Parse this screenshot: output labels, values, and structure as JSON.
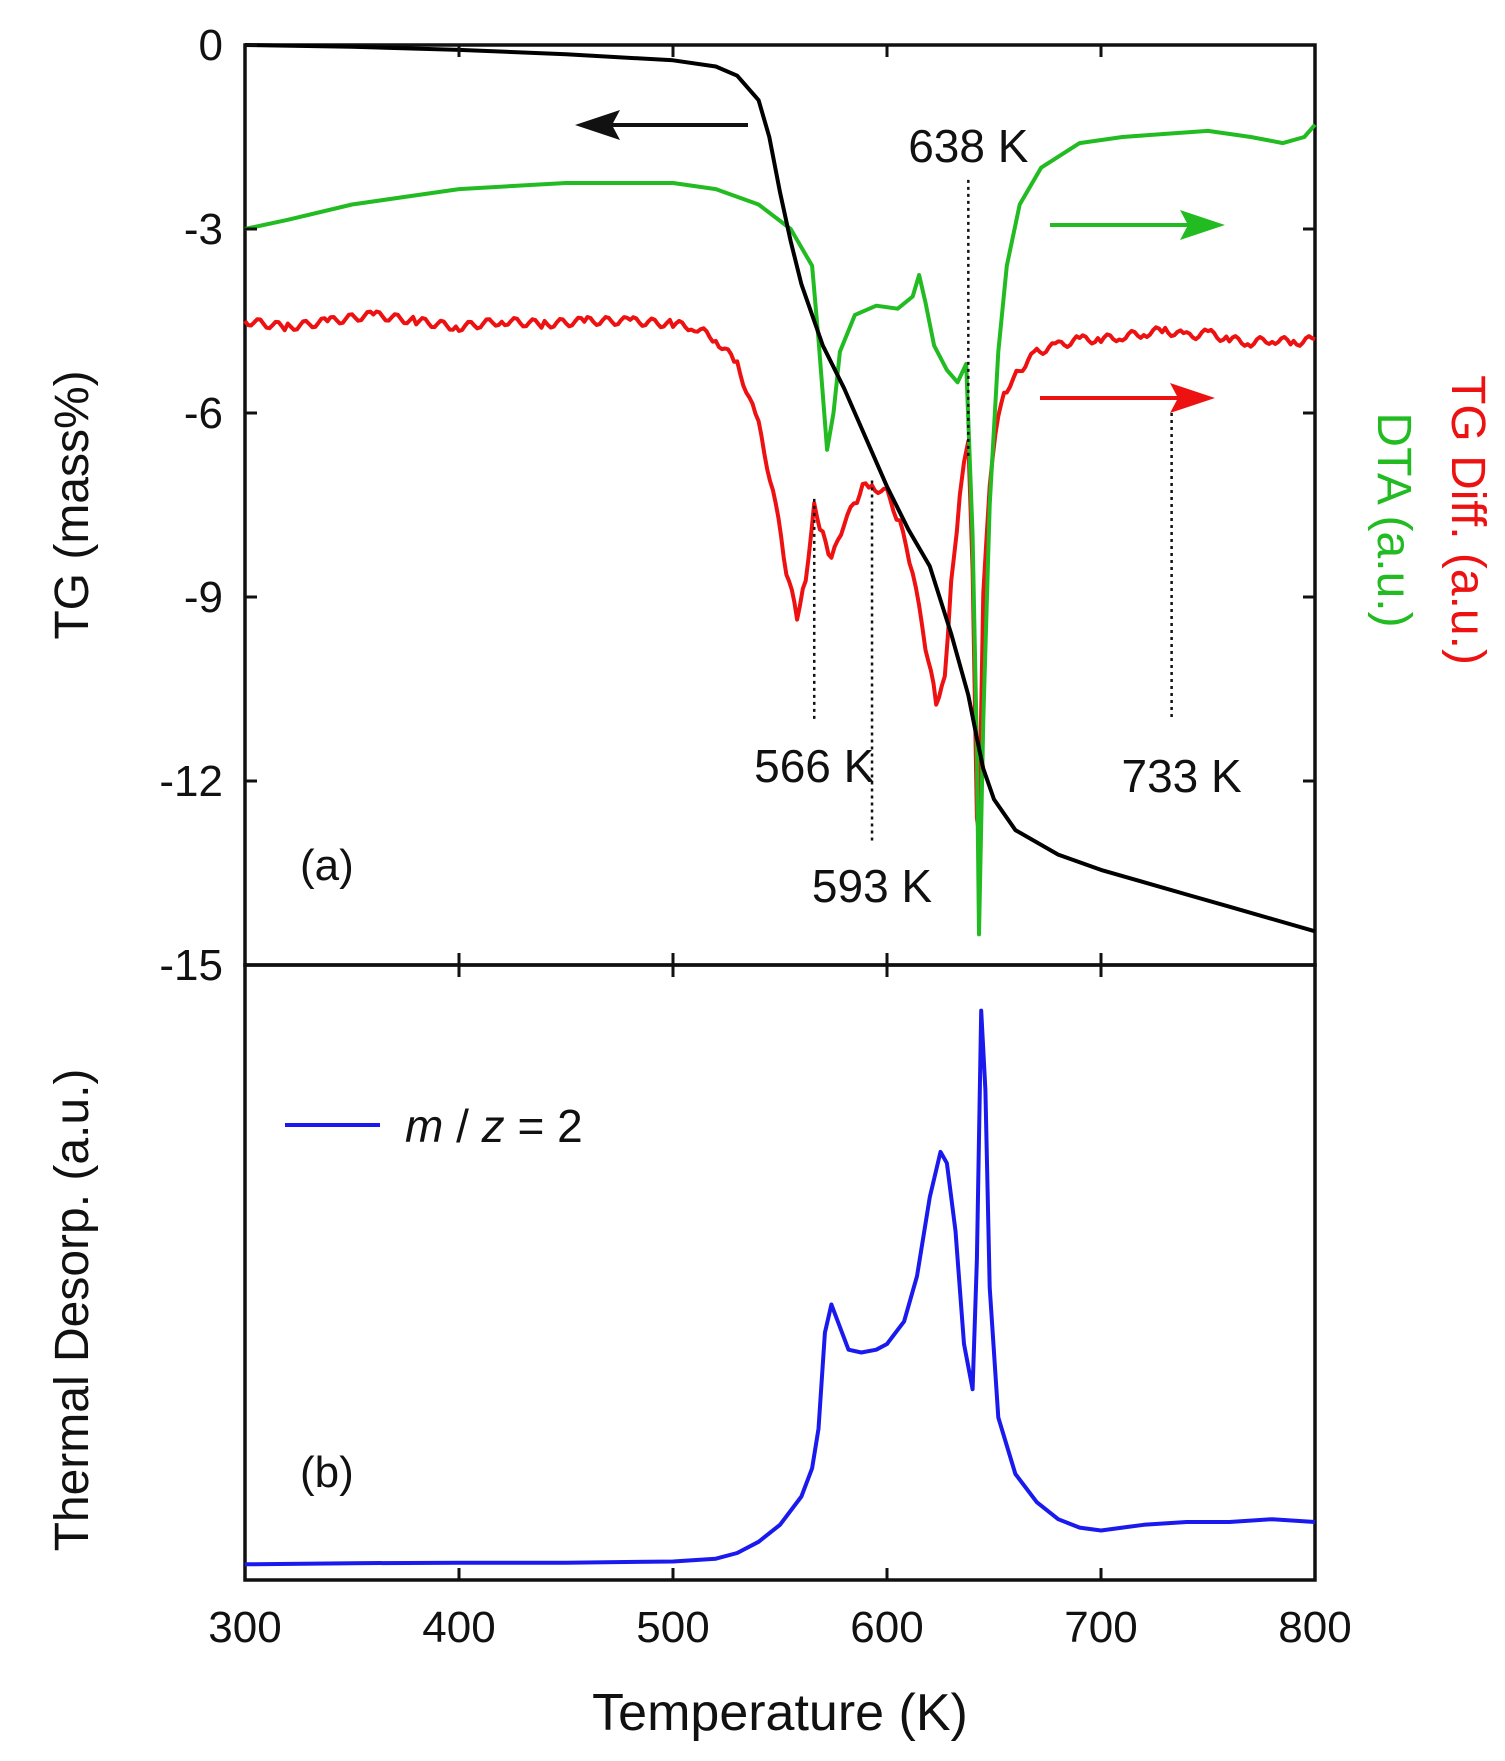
{
  "chart_data": [
    {
      "panel_label": "(a)",
      "type": "line",
      "xlim": [
        300,
        800
      ],
      "ylim": [
        -15,
        0
      ],
      "xticks": [
        300,
        400,
        500,
        600,
        700,
        800
      ],
      "yticks": [
        "0",
        "-3",
        "-6",
        "-9",
        "-12",
        "-15"
      ],
      "ylabel": "TG (mass%)",
      "ylabel_right_1": "TG Diff. (a.u.)",
      "ylabel_right_2": "DTA (a.u.)",
      "colors": {
        "tg": "#000000",
        "dta": "#22bb22",
        "tgdiff": "#ee1111"
      },
      "series": [
        {
          "name": "TG",
          "axis": "left",
          "points": [
            [
              300,
              0
            ],
            [
              350,
              -0.03
            ],
            [
              400,
              -0.08
            ],
            [
              450,
              -0.15
            ],
            [
              500,
              -0.25
            ],
            [
              520,
              -0.35
            ],
            [
              530,
              -0.5
            ],
            [
              540,
              -0.9
            ],
            [
              545,
              -1.5
            ],
            [
              550,
              -2.4
            ],
            [
              555,
              -3.2
            ],
            [
              560,
              -3.9
            ],
            [
              565,
              -4.4
            ],
            [
              570,
              -4.9
            ],
            [
              580,
              -5.6
            ],
            [
              590,
              -6.4
            ],
            [
              600,
              -7.2
            ],
            [
              610,
              -7.9
            ],
            [
              620,
              -8.5
            ],
            [
              630,
              -9.6
            ],
            [
              638,
              -10.6
            ],
            [
              642,
              -11.3
            ],
            [
              645,
              -11.8
            ],
            [
              650,
              -12.3
            ],
            [
              660,
              -12.8
            ],
            [
              680,
              -13.2
            ],
            [
              700,
              -13.45
            ],
            [
              720,
              -13.65
            ],
            [
              740,
              -13.85
            ],
            [
              760,
              -14.05
            ],
            [
              780,
              -14.25
            ],
            [
              800,
              -14.45
            ]
          ]
        },
        {
          "name": "DTA",
          "axis": "right",
          "points": [
            [
              300,
              -3.0
            ],
            [
              320,
              -2.85
            ],
            [
              350,
              -2.6
            ],
            [
              400,
              -2.35
            ],
            [
              450,
              -2.25
            ],
            [
              500,
              -2.25
            ],
            [
              520,
              -2.35
            ],
            [
              540,
              -2.6
            ],
            [
              555,
              -3.0
            ],
            [
              565,
              -3.6
            ],
            [
              568,
              -4.8
            ],
            [
              572,
              -6.6
            ],
            [
              575,
              -6.0
            ],
            [
              578,
              -5.0
            ],
            [
              585,
              -4.4
            ],
            [
              595,
              -4.25
            ],
            [
              605,
              -4.3
            ],
            [
              612,
              -4.1
            ],
            [
              615,
              -3.75
            ],
            [
              618,
              -4.2
            ],
            [
              622,
              -4.9
            ],
            [
              628,
              -5.3
            ],
            [
              633,
              -5.5
            ],
            [
              637,
              -5.2
            ],
            [
              640,
              -8.0
            ],
            [
              642,
              -11.5
            ],
            [
              643,
              -14.5
            ],
            [
              645,
              -11.0
            ],
            [
              648,
              -7.5
            ],
            [
              652,
              -5.0
            ],
            [
              656,
              -3.6
            ],
            [
              662,
              -2.6
            ],
            [
              672,
              -2.0
            ],
            [
              690,
              -1.6
            ],
            [
              710,
              -1.5
            ],
            [
              730,
              -1.45
            ],
            [
              750,
              -1.4
            ],
            [
              770,
              -1.5
            ],
            [
              785,
              -1.6
            ],
            [
              795,
              -1.5
            ],
            [
              800,
              -1.3
            ]
          ]
        },
        {
          "name": "TG Diff.",
          "axis": "right",
          "points": [
            [
              300,
              -4.5
            ],
            [
              320,
              -4.6
            ],
            [
              340,
              -4.5
            ],
            [
              360,
              -4.4
            ],
            [
              380,
              -4.5
            ],
            [
              400,
              -4.6
            ],
            [
              420,
              -4.5
            ],
            [
              440,
              -4.55
            ],
            [
              460,
              -4.5
            ],
            [
              480,
              -4.5
            ],
            [
              500,
              -4.55
            ],
            [
              510,
              -4.6
            ],
            [
              520,
              -4.8
            ],
            [
              530,
              -5.2
            ],
            [
              540,
              -6.2
            ],
            [
              548,
              -7.5
            ],
            [
              553,
              -8.6
            ],
            [
              558,
              -9.3
            ],
            [
              562,
              -8.7
            ],
            [
              566,
              -7.5
            ],
            [
              570,
              -8.0
            ],
            [
              574,
              -8.4
            ],
            [
              580,
              -7.8
            ],
            [
              586,
              -7.4
            ],
            [
              590,
              -7.1
            ],
            [
              593,
              -7.2
            ],
            [
              600,
              -7.3
            ],
            [
              606,
              -7.8
            ],
            [
              612,
              -8.6
            ],
            [
              618,
              -9.8
            ],
            [
              623,
              -10.7
            ],
            [
              627,
              -10.3
            ],
            [
              630,
              -8.8
            ],
            [
              634,
              -7.4
            ],
            [
              636,
              -6.8
            ],
            [
              638,
              -6.4
            ],
            [
              640,
              -8.5
            ],
            [
              642,
              -12.6
            ],
            [
              643,
              -12.9
            ],
            [
              645,
              -9.0
            ],
            [
              648,
              -7.2
            ],
            [
              652,
              -6.0
            ],
            [
              656,
              -5.6
            ],
            [
              662,
              -5.3
            ],
            [
              670,
              -5.0
            ],
            [
              680,
              -4.9
            ],
            [
              690,
              -4.8
            ],
            [
              700,
              -4.8
            ],
            [
              710,
              -4.75
            ],
            [
              720,
              -4.7
            ],
            [
              730,
              -4.65
            ],
            [
              740,
              -4.75
            ],
            [
              750,
              -4.7
            ],
            [
              760,
              -4.8
            ],
            [
              770,
              -4.85
            ],
            [
              780,
              -4.8
            ],
            [
              790,
              -4.85
            ],
            [
              800,
              -4.8
            ]
          ]
        }
      ],
      "annotations": [
        {
          "text": "638 K",
          "x": 638
        },
        {
          "text": "566 K",
          "x": 566
        },
        {
          "text": "593 K",
          "x": 593
        },
        {
          "text": "733 K",
          "x": 733
        }
      ]
    },
    {
      "panel_label": "(b)",
      "type": "line",
      "xlim": [
        300,
        800
      ],
      "xticks": [
        300,
        400,
        500,
        600,
        700,
        800
      ],
      "xlabel": "Temperature (K)",
      "ylabel": "Thermal Desorp. (a.u.)",
      "legend": {
        "italic_1": "m",
        "plain_1": " / ",
        "italic_2": "z",
        "plain_2": " = 2"
      },
      "ylim": [
        0,
        1.0
      ],
      "colors": {
        "series": "#1a1aee"
      },
      "series": [
        {
          "name": "m / z = 2",
          "points": [
            [
              300,
              0.01
            ],
            [
              350,
              0.012
            ],
            [
              400,
              0.013
            ],
            [
              450,
              0.013
            ],
            [
              500,
              0.015
            ],
            [
              520,
              0.02
            ],
            [
              530,
              0.03
            ],
            [
              540,
              0.05
            ],
            [
              550,
              0.08
            ],
            [
              560,
              0.13
            ],
            [
              565,
              0.18
            ],
            [
              568,
              0.25
            ],
            [
              571,
              0.42
            ],
            [
              574,
              0.47
            ],
            [
              577,
              0.44
            ],
            [
              582,
              0.39
            ],
            [
              588,
              0.385
            ],
            [
              595,
              0.39
            ],
            [
              600,
              0.4
            ],
            [
              608,
              0.44
            ],
            [
              614,
              0.52
            ],
            [
              620,
              0.66
            ],
            [
              625,
              0.74
            ],
            [
              628,
              0.72
            ],
            [
              632,
              0.6
            ],
            [
              636,
              0.4
            ],
            [
              640,
              0.32
            ],
            [
              642,
              0.55
            ],
            [
              644,
              0.99
            ],
            [
              646,
              0.85
            ],
            [
              648,
              0.5
            ],
            [
              652,
              0.27
            ],
            [
              660,
              0.17
            ],
            [
              670,
              0.12
            ],
            [
              680,
              0.09
            ],
            [
              690,
              0.075
            ],
            [
              700,
              0.07
            ],
            [
              710,
              0.075
            ],
            [
              720,
              0.08
            ],
            [
              740,
              0.085
            ],
            [
              760,
              0.085
            ],
            [
              780,
              0.09
            ],
            [
              800,
              0.085
            ]
          ]
        }
      ]
    }
  ]
}
